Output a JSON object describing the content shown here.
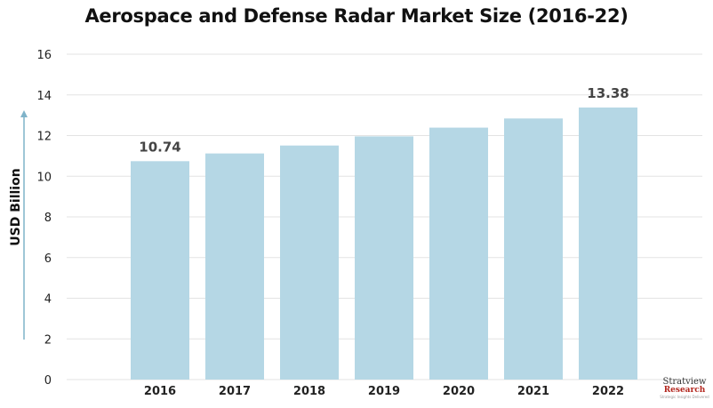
{
  "chart_data": {
    "type": "bar",
    "title": "Aerospace and Defense Radar Market Size (2016-22)",
    "ylabel": "USD Billion",
    "xlabel": "",
    "categories": [
      "2016",
      "2017",
      "2018",
      "2019",
      "2020",
      "2021",
      "2022"
    ],
    "values": [
      10.74,
      11.12,
      11.51,
      11.96,
      12.39,
      12.84,
      13.38
    ],
    "data_labels": {
      "2016": "10.74",
      "2022": "13.38"
    },
    "ylim": [
      0,
      16
    ],
    "yticks": [
      "0",
      "2",
      "4",
      "6",
      "8",
      "10",
      "12",
      "14",
      "16"
    ],
    "grid": true,
    "bar_color": "#b5d7e5",
    "grid_color": "#e3e3e3",
    "arrow_color": "#7fb3c9"
  },
  "logo": {
    "name": "Stratview",
    "sub": "Research",
    "tagline": "Strategic Insights Delivered"
  }
}
